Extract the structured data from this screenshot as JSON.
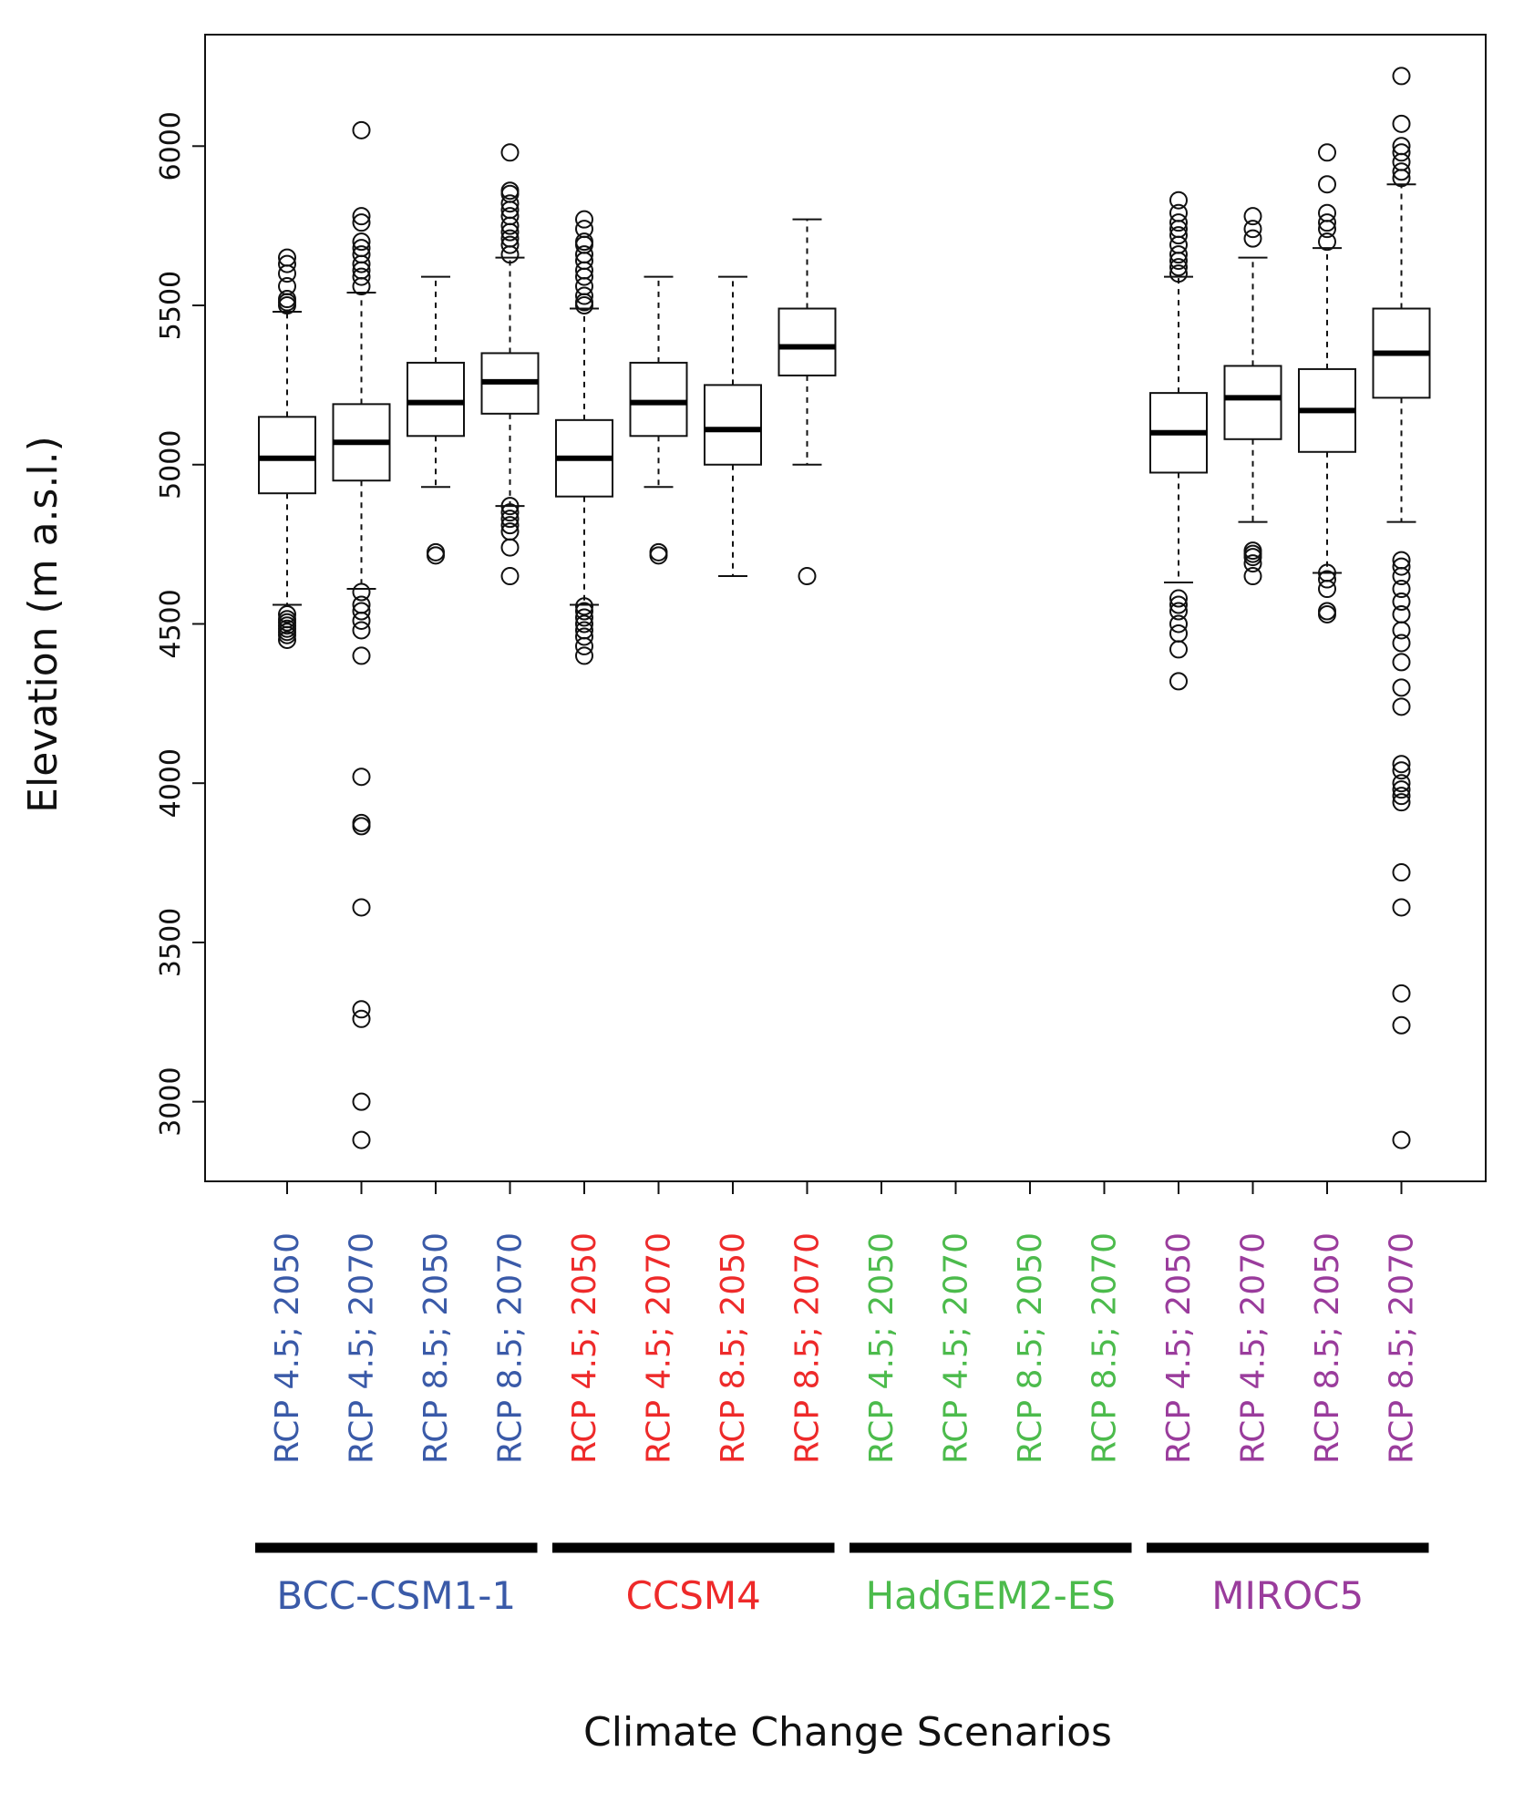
{
  "chart_data": {
    "type": "boxplot",
    "title": "",
    "xlabel": "Climate Change Scenarios",
    "ylabel": "Elevation (m a.s.l.)",
    "ylim": [
      2750,
      6350
    ],
    "yticks": [
      3000,
      3500,
      4000,
      4500,
      5000,
      5500,
      6000
    ],
    "ytick_labels": [
      "3000",
      "3500",
      "4000",
      "4500",
      "5000",
      "5500",
      "6000"
    ],
    "grid": false,
    "groups": [
      {
        "name": "BCC-CSM1-1",
        "color": "#3a5aa8"
      },
      {
        "name": "CCSM4",
        "color": "#ee2a2a"
      },
      {
        "name": "HadGEM2-ES",
        "color": "#4cbb4c"
      },
      {
        "name": "MIROC5",
        "color": "#9a3c9c"
      }
    ],
    "categories": [
      {
        "label": "RCP 4.5; 2050",
        "group": 0,
        "box": {
          "whisker_low": 4560,
          "q1": 4910,
          "median": 5020,
          "q3": 5150,
          "whisker_high": 5480
        },
        "outliers": [
          4450,
          4465,
          4475,
          4485,
          4495,
          4505,
          4515,
          4530,
          5500,
          5510,
          5520,
          5560,
          5600,
          5630,
          5650
        ]
      },
      {
        "label": "RCP 4.5; 2070",
        "group": 0,
        "box": {
          "whisker_low": 4610,
          "q1": 4950,
          "median": 5070,
          "q3": 5190,
          "whisker_high": 5540
        },
        "outliers": [
          2880,
          3000,
          3260,
          3290,
          3610,
          3865,
          3875,
          4020,
          4400,
          4480,
          4510,
          4540,
          4560,
          4600,
          5560,
          5590,
          5610,
          5630,
          5660,
          5680,
          5700,
          5760,
          5780,
          6050
        ]
      },
      {
        "label": "RCP 8.5; 2050",
        "group": 0,
        "box": {
          "whisker_low": 4930,
          "q1": 5090,
          "median": 5195,
          "q3": 5320,
          "whisker_high": 5590
        },
        "outliers": [
          4715,
          4725
        ]
      },
      {
        "label": "RCP 8.5; 2070",
        "group": 0,
        "box": {
          "whisker_low": 4870,
          "q1": 5160,
          "median": 5260,
          "q3": 5350,
          "whisker_high": 5650
        },
        "outliers": [
          4650,
          4740,
          4790,
          4810,
          4830,
          4850,
          4870,
          5660,
          5690,
          5710,
          5730,
          5750,
          5780,
          5800,
          5820,
          5850,
          5860,
          5980
        ]
      },
      {
        "label": "RCP 4.5; 2050",
        "group": 1,
        "box": {
          "whisker_low": 4560,
          "q1": 4900,
          "median": 5020,
          "q3": 5140,
          "whisker_high": 5490
        },
        "outliers": [
          4400,
          4430,
          4460,
          4480,
          4500,
          4520,
          4540,
          4555,
          5500,
          5510,
          5530,
          5560,
          5590,
          5610,
          5640,
          5660,
          5690,
          5700,
          5740,
          5770
        ]
      },
      {
        "label": "RCP 4.5; 2070",
        "group": 1,
        "box": {
          "whisker_low": 4930,
          "q1": 5090,
          "median": 5195,
          "q3": 5320,
          "whisker_high": 5590
        },
        "outliers": [
          4715,
          4725
        ]
      },
      {
        "label": "RCP 8.5; 2050",
        "group": 1,
        "box": {
          "whisker_low": 4650,
          "q1": 5000,
          "median": 5110,
          "q3": 5250,
          "whisker_high": 5590
        },
        "outliers": []
      },
      {
        "label": "RCP 8.5; 2070",
        "group": 1,
        "box": {
          "whisker_low": 5000,
          "q1": 5280,
          "median": 5370,
          "q3": 5490,
          "whisker_high": 5770
        },
        "outliers": [
          4650
        ]
      },
      {
        "label": "RCP 4.5; 2050",
        "group": 2,
        "box": null,
        "outliers": []
      },
      {
        "label": "RCP 4.5; 2070",
        "group": 2,
        "box": null,
        "outliers": []
      },
      {
        "label": "RCP 8.5; 2050",
        "group": 2,
        "box": null,
        "outliers": []
      },
      {
        "label": "RCP 8.5; 2070",
        "group": 2,
        "box": null,
        "outliers": []
      },
      {
        "label": "RCP 4.5; 2050",
        "group": 3,
        "box": {
          "whisker_low": 4630,
          "q1": 4975,
          "median": 5100,
          "q3": 5225,
          "whisker_high": 5590
        },
        "outliers": [
          4320,
          4420,
          4470,
          4500,
          4540,
          4560,
          4580,
          5600,
          5620,
          5640,
          5660,
          5690,
          5720,
          5740,
          5760,
          5790,
          5830
        ]
      },
      {
        "label": "RCP 4.5; 2070",
        "group": 3,
        "box": {
          "whisker_low": 4820,
          "q1": 5080,
          "median": 5210,
          "q3": 5310,
          "whisker_high": 5650
        },
        "outliers": [
          4650,
          4690,
          4710,
          4720,
          4730,
          5710,
          5740,
          5780
        ]
      },
      {
        "label": "RCP 8.5; 2050",
        "group": 3,
        "box": {
          "whisker_low": 4660,
          "q1": 5040,
          "median": 5170,
          "q3": 5300,
          "whisker_high": 5680
        },
        "outliers": [
          4530,
          4540,
          4610,
          4640,
          4660,
          5700,
          5740,
          5760,
          5790,
          5880,
          5980
        ]
      },
      {
        "label": "RCP 8.5; 2070",
        "group": 3,
        "box": {
          "whisker_low": 4820,
          "q1": 5210,
          "median": 5350,
          "q3": 5490,
          "whisker_high": 5880
        },
        "outliers": [
          2880,
          3240,
          3340,
          3610,
          3720,
          3940,
          3960,
          3980,
          4000,
          4040,
          4060,
          4240,
          4300,
          4380,
          4440,
          4480,
          4530,
          4570,
          4610,
          4650,
          4680,
          4700,
          5900,
          5920,
          5950,
          5980,
          6000,
          6070,
          6220
        ]
      }
    ]
  }
}
